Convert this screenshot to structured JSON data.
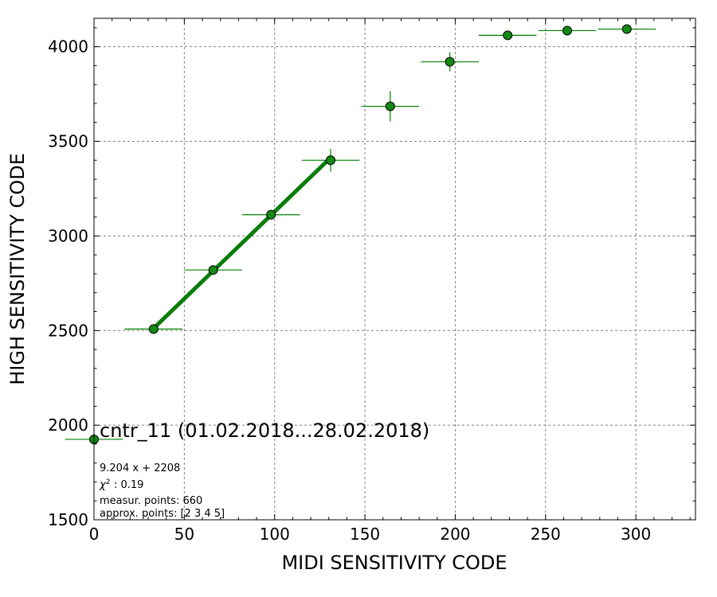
{
  "chart_data": {
    "type": "scatter",
    "title": "",
    "xlabel": "MIDI SENSITIVITY CODE",
    "ylabel": "HIGH SENSITIVITY CODE",
    "xlim": [
      0,
      333
    ],
    "ylim": [
      1500,
      4150
    ],
    "xticks": [
      0,
      50,
      100,
      150,
      200,
      250,
      300
    ],
    "yticks": [
      1500,
      2000,
      2500,
      3000,
      3500,
      4000
    ],
    "grid": true,
    "colors": {
      "marker": "#138a13",
      "fit_line": "#0a7d0a",
      "errorbar": "#008000",
      "grid": "#808080"
    },
    "points": [
      {
        "x": 0,
        "y": 1925,
        "xerr": 16,
        "yerr": 0
      },
      {
        "x": 33,
        "y": 2508,
        "xerr": 16,
        "yerr": 8
      },
      {
        "x": 66,
        "y": 2820,
        "xerr": 16,
        "yerr": 15
      },
      {
        "x": 98,
        "y": 3112,
        "xerr": 16,
        "yerr": 25
      },
      {
        "x": 131,
        "y": 3400,
        "xerr": 16,
        "yerr": 60
      },
      {
        "x": 164,
        "y": 3685,
        "xerr": 16,
        "yerr": 80
      },
      {
        "x": 197,
        "y": 3920,
        "xerr": 16,
        "yerr": 50
      },
      {
        "x": 229,
        "y": 4060,
        "xerr": 16,
        "yerr": 0
      },
      {
        "x": 262,
        "y": 4085,
        "xerr": 16,
        "yerr": 0
      },
      {
        "x": 295,
        "y": 4093,
        "xerr": 16,
        "yerr": 0
      }
    ],
    "fit": {
      "slope": 9.204,
      "intercept": 2208,
      "x_range": [
        33,
        131
      ]
    },
    "annotations": {
      "title": "cntr_11 (01.02.2018...28.02.2018)",
      "equation": "9.204 x + 2208",
      "chi2_label": ": 0.19",
      "measur_points": "measur. points: 660",
      "approx_points": "approx. points: [2 3 4 5]"
    }
  }
}
